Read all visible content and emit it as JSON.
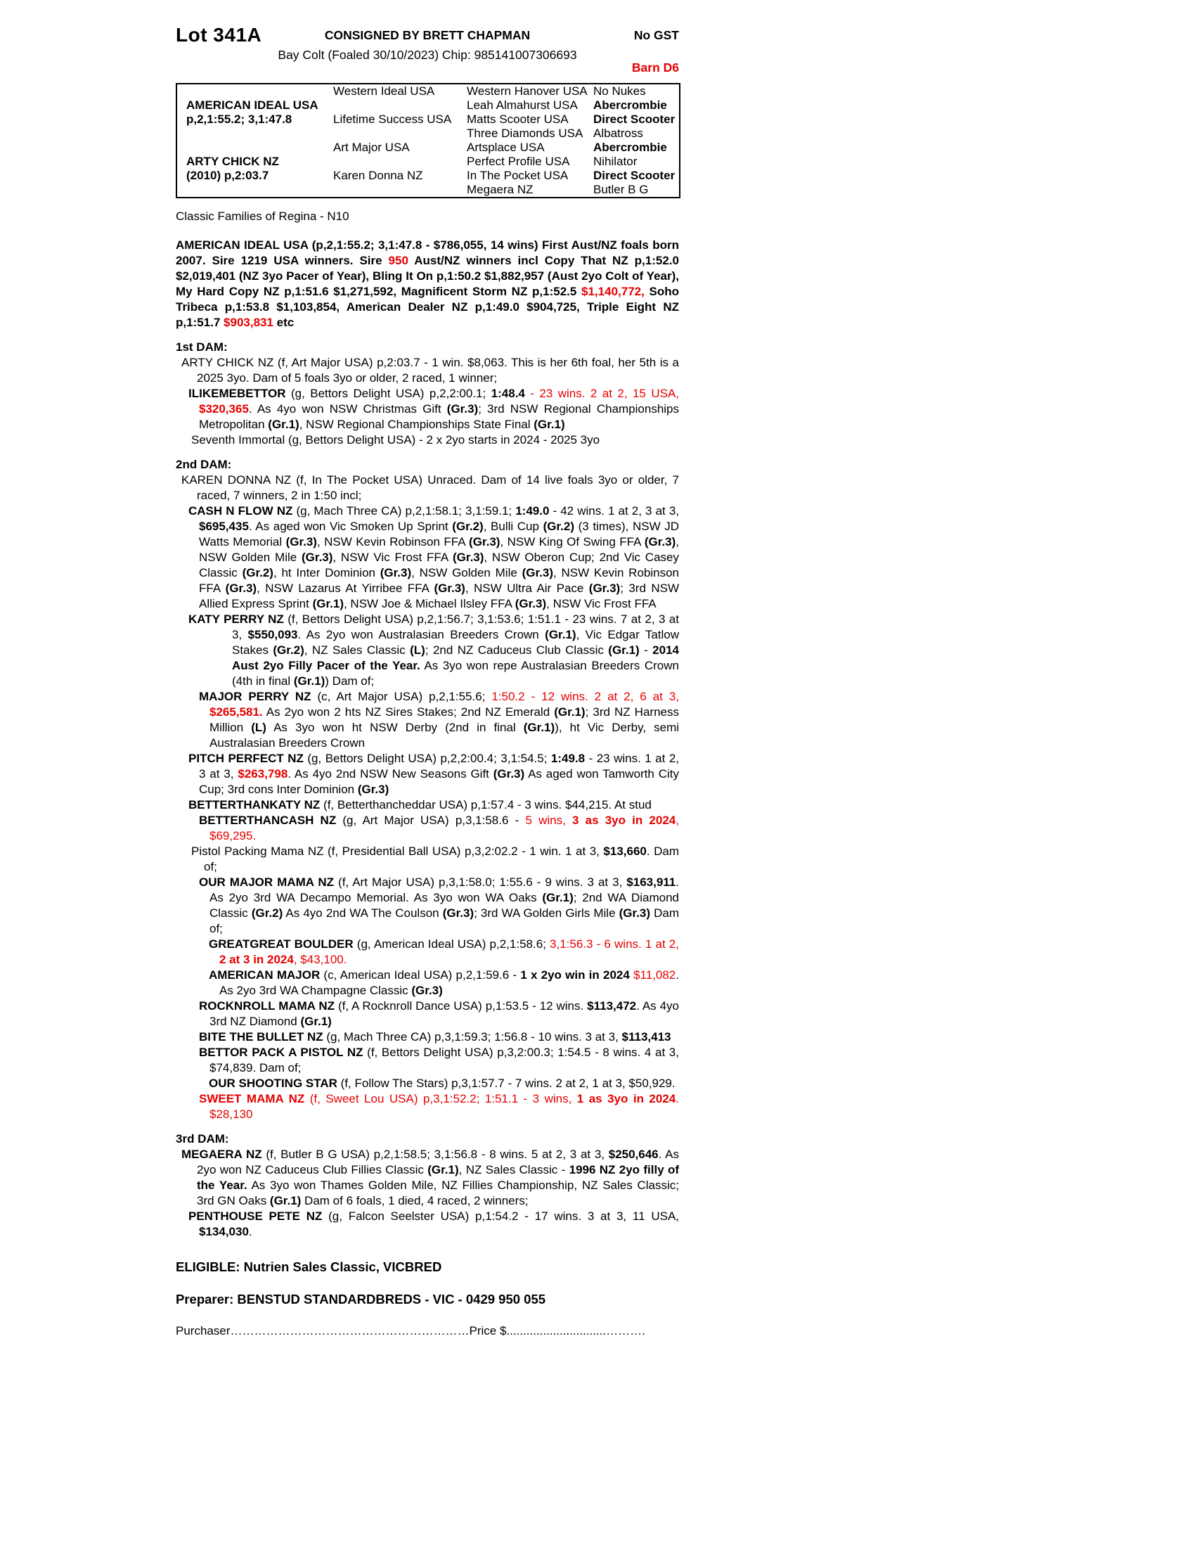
{
  "colors": {
    "red": "#e60000",
    "text": "#000000",
    "background": "#ffffff"
  },
  "page": {
    "lot": "Lot 341A",
    "consignor": "CONSIGNED BY BRETT CHAPMAN",
    "foal_line": "Bay Colt (Foaled 30/10/2023) Chip: 985141007306693",
    "gst": "No GST",
    "barn": "Barn D6"
  },
  "pedigree": {
    "rows": [
      [
        {
          "t": ""
        },
        {
          "t": "Western Ideal USA"
        },
        {
          "t": "Western Hanover USA"
        },
        {
          "t": "No Nukes"
        }
      ],
      [
        {
          "t": "AMERICAN IDEAL USA",
          "b": true
        },
        {
          "t": ""
        },
        {
          "t": "Leah Almahurst USA"
        },
        {
          "t": "Abercrombie",
          "b": true
        }
      ],
      [
        {
          "t": "p,2,1:55.2; 3,1:47.8",
          "b": true
        },
        {
          "t": "Lifetime Success USA"
        },
        {
          "t": "Matts Scooter USA"
        },
        {
          "t": "Direct Scooter",
          "b": true
        }
      ],
      [
        {
          "t": ""
        },
        {
          "t": ""
        },
        {
          "t": "Three Diamonds USA"
        },
        {
          "t": "Albatross"
        }
      ],
      [
        {
          "t": ""
        },
        {
          "t": "Art Major USA"
        },
        {
          "t": "Artsplace USA"
        },
        {
          "t": "Abercrombie",
          "b": true
        }
      ],
      [
        {
          "t": "ARTY CHICK NZ",
          "b": true
        },
        {
          "t": ""
        },
        {
          "t": "Perfect Profile USA"
        },
        {
          "t": "Nihilator"
        }
      ],
      [
        {
          "t": "(2010) p,2:03.7",
          "b": true
        },
        {
          "t": "Karen Donna NZ"
        },
        {
          "t": "In The Pocket USA"
        },
        {
          "t": "Direct Scooter",
          "b": true
        }
      ],
      [
        {
          "t": ""
        },
        {
          "t": ""
        },
        {
          "t": "Megaera NZ"
        },
        {
          "t": "Butler B G"
        }
      ]
    ]
  },
  "family_line": "Classic Families of Regina - N10",
  "sire_para": {
    "segs": [
      {
        "t": "AMERICAN IDEAL USA (p,2,1:55.2; 3,1:47.8 - $786,055, 14 wins) First Aust/NZ foals born 2007. Sire 1219 USA winners. Sire ",
        "b": true
      },
      {
        "t": "950",
        "b": true,
        "r": true
      },
      {
        "t": " Aust/NZ winners incl Copy That NZ p,1:52.0 $2,019,401 (NZ 3yo Pacer of Year), Bling It On p,1:50.2 $1,882,957 (Aust 2yo Colt of Year), My Hard Copy NZ p,1:51.6 $1,271,592, Magnificent Storm NZ p,1:52.5 ",
        "b": true
      },
      {
        "t": "$1,140,772,",
        "b": true,
        "r": true
      },
      {
        "t": " Soho Tribeca p,1:53.8 $1,103,854, American Dealer NZ p,1:49.0 $904,725, Triple Eight NZ p,1:51.7 ",
        "b": true
      },
      {
        "t": "$903,831",
        "b": true,
        "r": true
      },
      {
        "t": " etc",
        "b": true
      }
    ]
  },
  "blocks": [
    {
      "type": "h",
      "text": "1st DAM:"
    },
    {
      "type": "p",
      "ind": "ind-dam",
      "segs": [
        {
          "t": "ARTY CHICK NZ (f, Art Major USA) p,2:03.7 - 1 win. $8,063. This is her 6th foal, her 5th is a 2025 3yo. Dam of 5 foals 3yo or older, 2 raced, 1 winner;"
        }
      ]
    },
    {
      "type": "p",
      "ind": "ind-entry",
      "segs": [
        {
          "t": "ILIKEMEBETTOR",
          "b": true
        },
        {
          "t": " (g, Bettors Delight USA) p,2,2:00.1; "
        },
        {
          "t": "1:48.4",
          "b": true
        },
        {
          "t": " - 23 wins. 2 at 2, 15 USA, ",
          "r": true
        },
        {
          "t": "$320,365",
          "b": true,
          "r": true
        },
        {
          "t": ". As 4yo won NSW Christmas Gift "
        },
        {
          "t": "(Gr.3)",
          "b": true
        },
        {
          "t": "; 3rd NSW Regional Championships Metropolitan "
        },
        {
          "t": "(Gr.1)",
          "b": true
        },
        {
          "t": ", NSW Regional Championships State Final "
        },
        {
          "t": "(Gr.1)",
          "b": true
        }
      ]
    },
    {
      "type": "p",
      "ind": "ind-mid",
      "segs": [
        {
          "t": "Seventh Immortal (g, Bettors Delight USA) - 2 x 2yo starts in 2024 - 2025 3yo"
        }
      ]
    },
    {
      "type": "h",
      "text": "2nd DAM:"
    },
    {
      "type": "p",
      "ind": "ind-dam",
      "segs": [
        {
          "t": "KAREN DONNA NZ (f, In The Pocket USA) Unraced. Dam of 14 live foals 3yo or older, 7 raced, 7 winners, 2 in 1:50 incl;"
        }
      ]
    },
    {
      "type": "p",
      "ind": "ind-entry",
      "segs": [
        {
          "t": "CASH N FLOW NZ",
          "b": true
        },
        {
          "t": " (g, Mach Three CA) p,2,1:58.1; 3,1:59.1; "
        },
        {
          "t": "1:49.0",
          "b": true
        },
        {
          "t": " - 42 wins. 1 at 2, 3 at 3, "
        },
        {
          "t": "$695,435",
          "b": true
        },
        {
          "t": ". As aged won Vic Smoken Up Sprint "
        },
        {
          "t": "(Gr.2)",
          "b": true
        },
        {
          "t": ", Bulli Cup "
        },
        {
          "t": "(Gr.2)",
          "b": true
        },
        {
          "t": " (3 times), NSW JD Watts Memorial "
        },
        {
          "t": "(Gr.3)",
          "b": true
        },
        {
          "t": ", NSW Kevin Robinson FFA "
        },
        {
          "t": "(Gr.3)",
          "b": true
        },
        {
          "t": ", NSW King Of Swing FFA "
        },
        {
          "t": "(Gr.3)",
          "b": true
        },
        {
          "t": ", NSW Golden Mile "
        },
        {
          "t": "(Gr.3)",
          "b": true
        },
        {
          "t": ", NSW Vic Frost FFA "
        },
        {
          "t": "(Gr.3)",
          "b": true
        },
        {
          "t": ", NSW Oberon Cup; 2nd Vic Casey Classic "
        },
        {
          "t": "(Gr.2)",
          "b": true
        },
        {
          "t": ", ht Inter Dominion "
        },
        {
          "t": "(Gr.3)",
          "b": true
        },
        {
          "t": ", NSW Golden Mile "
        },
        {
          "t": "(Gr.3)",
          "b": true
        },
        {
          "t": ", NSW Kevin Robinson FFA "
        },
        {
          "t": "(Gr.3)",
          "b": true
        },
        {
          "t": ", NSW Lazarus At Yirribee FFA "
        },
        {
          "t": "(Gr.3)",
          "b": true
        },
        {
          "t": ", NSW Ultra Air Pace "
        },
        {
          "t": "(Gr.3)",
          "b": true
        },
        {
          "t": "; 3rd NSW Allied Express Sprint "
        },
        {
          "t": "(Gr.1)",
          "b": true
        },
        {
          "t": ", NSW Joe & Michael Ilsley FFA "
        },
        {
          "t": "(Gr.3)",
          "b": true
        },
        {
          "t": ", NSW Vic Frost FFA"
        }
      ]
    },
    {
      "type": "p",
      "ind": "ind-entry-wide",
      "segs": [
        {
          "t": "KATY PERRY NZ",
          "b": true
        },
        {
          "t": " (f, Bettors Delight USA) p,2,1:56.7; 3,1:53.6; 1:51.1 - 23 wins. 7 at 2, 3 at 3, "
        },
        {
          "t": "$550,093",
          "b": true
        },
        {
          "t": ". As 2yo won Australasian Breeders Crown "
        },
        {
          "t": "(Gr.1)",
          "b": true
        },
        {
          "t": ", Vic Edgar Tatlow Stakes "
        },
        {
          "t": "(Gr.2)",
          "b": true
        },
        {
          "t": ", NZ Sales Classic "
        },
        {
          "t": "(L)",
          "b": true
        },
        {
          "t": "; 2nd NZ Caduceus Club Classic "
        },
        {
          "t": "(Gr.1)",
          "b": true
        },
        {
          "t": " - "
        },
        {
          "t": "2014 Aust 2yo Filly Pacer of the Year.",
          "b": true
        },
        {
          "t": " As 3yo won repe Australasian Breeders Crown (4th in final "
        },
        {
          "t": "(Gr.1)",
          "b": true
        },
        {
          "t": ") Dam of;"
        }
      ]
    },
    {
      "type": "p",
      "ind": "ind-sub",
      "segs": [
        {
          "t": "MAJOR PERRY NZ",
          "b": true
        },
        {
          "t": " (c, Art Major USA) p,2,1:55.6; "
        },
        {
          "t": "1:50.2 - 12 wins. 2 at 2, 6 at 3, ",
          "r": true
        },
        {
          "t": "$265,581.",
          "b": true,
          "r": true
        },
        {
          "t": " As 2yo won 2 hts NZ Sires Stakes; 2nd NZ Emerald "
        },
        {
          "t": "(Gr.1)",
          "b": true
        },
        {
          "t": "; 3rd NZ Harness Million "
        },
        {
          "t": "(L)",
          "b": true
        },
        {
          "t": " As 3yo won ht NSW Derby (2nd in final "
        },
        {
          "t": "(Gr.1)",
          "b": true
        },
        {
          "t": "), ht Vic Derby, semi Australasian Breeders Crown"
        }
      ]
    },
    {
      "type": "p",
      "ind": "ind-entry",
      "segs": [
        {
          "t": "PITCH PERFECT NZ",
          "b": true
        },
        {
          "t": " (g, Bettors Delight USA) p,2,2:00.4; 3,1:54.5; "
        },
        {
          "t": "1:49.8",
          "b": true
        },
        {
          "t": " - 23 wins. 1 at 2, 3 at 3, "
        },
        {
          "t": "$263,798",
          "b": true,
          "r": true
        },
        {
          "t": ". As 4yo 2nd NSW New Seasons Gift "
        },
        {
          "t": "(Gr.3)",
          "b": true
        },
        {
          "t": " As aged won Tamworth City Cup; 3rd cons Inter Dominion "
        },
        {
          "t": "(Gr.3)",
          "b": true
        }
      ]
    },
    {
      "type": "p",
      "ind": "ind-entry",
      "segs": [
        {
          "t": "BETTERTHANKATY NZ",
          "b": true
        },
        {
          "t": " (f, Betterthancheddar USA) p,1:57.4 - 3 wins. $44,215. At stud"
        }
      ]
    },
    {
      "type": "p",
      "ind": "ind-sub",
      "segs": [
        {
          "t": "BETTERTHANCASH NZ",
          "b": true
        },
        {
          "t": " (g, Art Major USA) p,3,1:58.6 - "
        },
        {
          "t": "5 wins, ",
          "r": true
        },
        {
          "t": "3 as 3yo in 2024",
          "b": true,
          "r": true
        },
        {
          "t": ", $69,295.",
          "r": true
        }
      ]
    },
    {
      "type": "p",
      "ind": "ind-mid",
      "segs": [
        {
          "t": "Pistol Packing Mama NZ (f, Presidential Ball USA) p,3,2:02.2 - 1 win. 1 at 3, "
        },
        {
          "t": "$13,660",
          "b": true
        },
        {
          "t": ". Dam of;"
        }
      ]
    },
    {
      "type": "p",
      "ind": "ind-sub",
      "segs": [
        {
          "t": "OUR MAJOR MAMA NZ",
          "b": true
        },
        {
          "t": " (f, Art Major USA) p,3,1:58.0; 1:55.6 - 9 wins. 3 at 3, "
        },
        {
          "t": "$163,911",
          "b": true
        },
        {
          "t": ". As 2yo 3rd WA Decampo Memorial. As 3yo won WA Oaks "
        },
        {
          "t": "(Gr.1)",
          "b": true
        },
        {
          "t": "; 2nd WA Diamond Classic "
        },
        {
          "t": "(Gr.2)",
          "b": true
        },
        {
          "t": " As 4yo 2nd WA The Coulson "
        },
        {
          "t": "(Gr.3)",
          "b": true
        },
        {
          "t": "; 3rd WA Golden Girls Mile "
        },
        {
          "t": "(Gr.3)",
          "b": true
        },
        {
          "t": " Dam of;"
        }
      ]
    },
    {
      "type": "p",
      "ind": "ind-sub2",
      "segs": [
        {
          "t": "GREATGREAT BOULDER",
          "b": true
        },
        {
          "t": " (g, American Ideal USA) p,2,1:58.6; "
        },
        {
          "t": "3,1:56.3 - 6 wins. 1 at 2, ",
          "r": true
        },
        {
          "t": "2 at 3 in 2024",
          "b": true,
          "r": true
        },
        {
          "t": ", $43,100.",
          "r": true
        }
      ]
    },
    {
      "type": "p",
      "ind": "ind-sub2",
      "segs": [
        {
          "t": "AMERICAN MAJOR",
          "b": true
        },
        {
          "t": " (c, American Ideal USA) p,2,1:59.6 - "
        },
        {
          "t": "1 x 2yo win in 2024",
          "b": true
        },
        {
          "t": " "
        },
        {
          "t": "$11,082",
          "r": true
        },
        {
          "t": ". As 2yo 3rd WA Champagne Classic "
        },
        {
          "t": "(Gr.3)",
          "b": true
        }
      ]
    },
    {
      "type": "p",
      "ind": "ind-sub",
      "segs": [
        {
          "t": "ROCKNROLL MAMA NZ",
          "b": true
        },
        {
          "t": " (f, A Rocknroll Dance USA) p,1:53.5 - 12 wins. "
        },
        {
          "t": "$113,472",
          "b": true
        },
        {
          "t": ". As 4yo 3rd NZ Diamond "
        },
        {
          "t": "(Gr.1)",
          "b": true
        }
      ]
    },
    {
      "type": "p",
      "ind": "ind-sub",
      "segs": [
        {
          "t": "BITE THE BULLET NZ",
          "b": true
        },
        {
          "t": " (g, Mach Three CA) p,3,1:59.3; 1:56.8 - 10 wins. 3 at 3, "
        },
        {
          "t": "$113,413",
          "b": true
        }
      ]
    },
    {
      "type": "p",
      "ind": "ind-sub",
      "segs": [
        {
          "t": "BETTOR PACK A PISTOL NZ",
          "b": true
        },
        {
          "t": " (f, Bettors Delight USA) p,3,2:00.3; 1:54.5 - 8 wins. 4 at 3, $74,839. Dam of;"
        }
      ]
    },
    {
      "type": "p",
      "ind": "ind-sub2",
      "segs": [
        {
          "t": "OUR SHOOTING STAR",
          "b": true
        },
        {
          "t": " (f, Follow The Stars) p,3,1:57.7 - 7 wins. 2 at 2, 1 at 3, $50,929."
        }
      ]
    },
    {
      "type": "p",
      "ind": "ind-sub",
      "segs": [
        {
          "t": "SWEET MAMA NZ",
          "b": true,
          "r": true
        },
        {
          "t": " (f, Sweet Lou USA) p,3,1:52.2; 1:51.1 - 3 wins, ",
          "r": true
        },
        {
          "t": "1 as 3yo in 2024",
          "b": true,
          "r": true
        },
        {
          "t": ". $28,130",
          "r": true
        }
      ]
    },
    {
      "type": "h",
      "text": "3rd DAM:"
    },
    {
      "type": "p",
      "ind": "ind-dam",
      "segs": [
        {
          "t": "MEGAERA NZ",
          "b": true
        },
        {
          "t": " (f, Butler B G USA) p,2,1:58.5; 3,1:56.8 - 8 wins. 5 at 2, 3 at 3, "
        },
        {
          "t": "$250,646",
          "b": true
        },
        {
          "t": ". As 2yo won NZ Caduceus Club Fillies Classic "
        },
        {
          "t": "(Gr.1)",
          "b": true
        },
        {
          "t": ", NZ Sales Classic - "
        },
        {
          "t": "1996 NZ 2yo filly of the Year.",
          "b": true
        },
        {
          "t": " As 3yo won Thames Golden Mile, NZ Fillies Championship, NZ Sales Classic; 3rd GN Oaks "
        },
        {
          "t": "(Gr.1)",
          "b": true
        },
        {
          "t": " Dam of 6 foals, 1 died, 4 raced, 2 winners;"
        }
      ]
    },
    {
      "type": "p",
      "ind": "ind-entry",
      "segs": [
        {
          "t": "PENTHOUSE PETE NZ",
          "b": true
        },
        {
          "t": " (g, Falcon Seelster USA) p,1:54.2 - 17 wins. 3 at 3, 11 USA, "
        },
        {
          "t": "$134,030",
          "b": true
        },
        {
          "t": "."
        }
      ]
    },
    {
      "type": "noop"
    }
  ],
  "footer": {
    "eligible": "ELIGIBLE: Nutrien Sales Classic, VICBRED",
    "preparer": "Preparer: BENSTUD STANDARDBREDS - VIC - 0429 950 055",
    "purchaser_label": "Purchaser",
    "purchaser_dots": "……………………………………………………",
    "price_label": "Price $",
    "price_dots": "..............................………."
  }
}
